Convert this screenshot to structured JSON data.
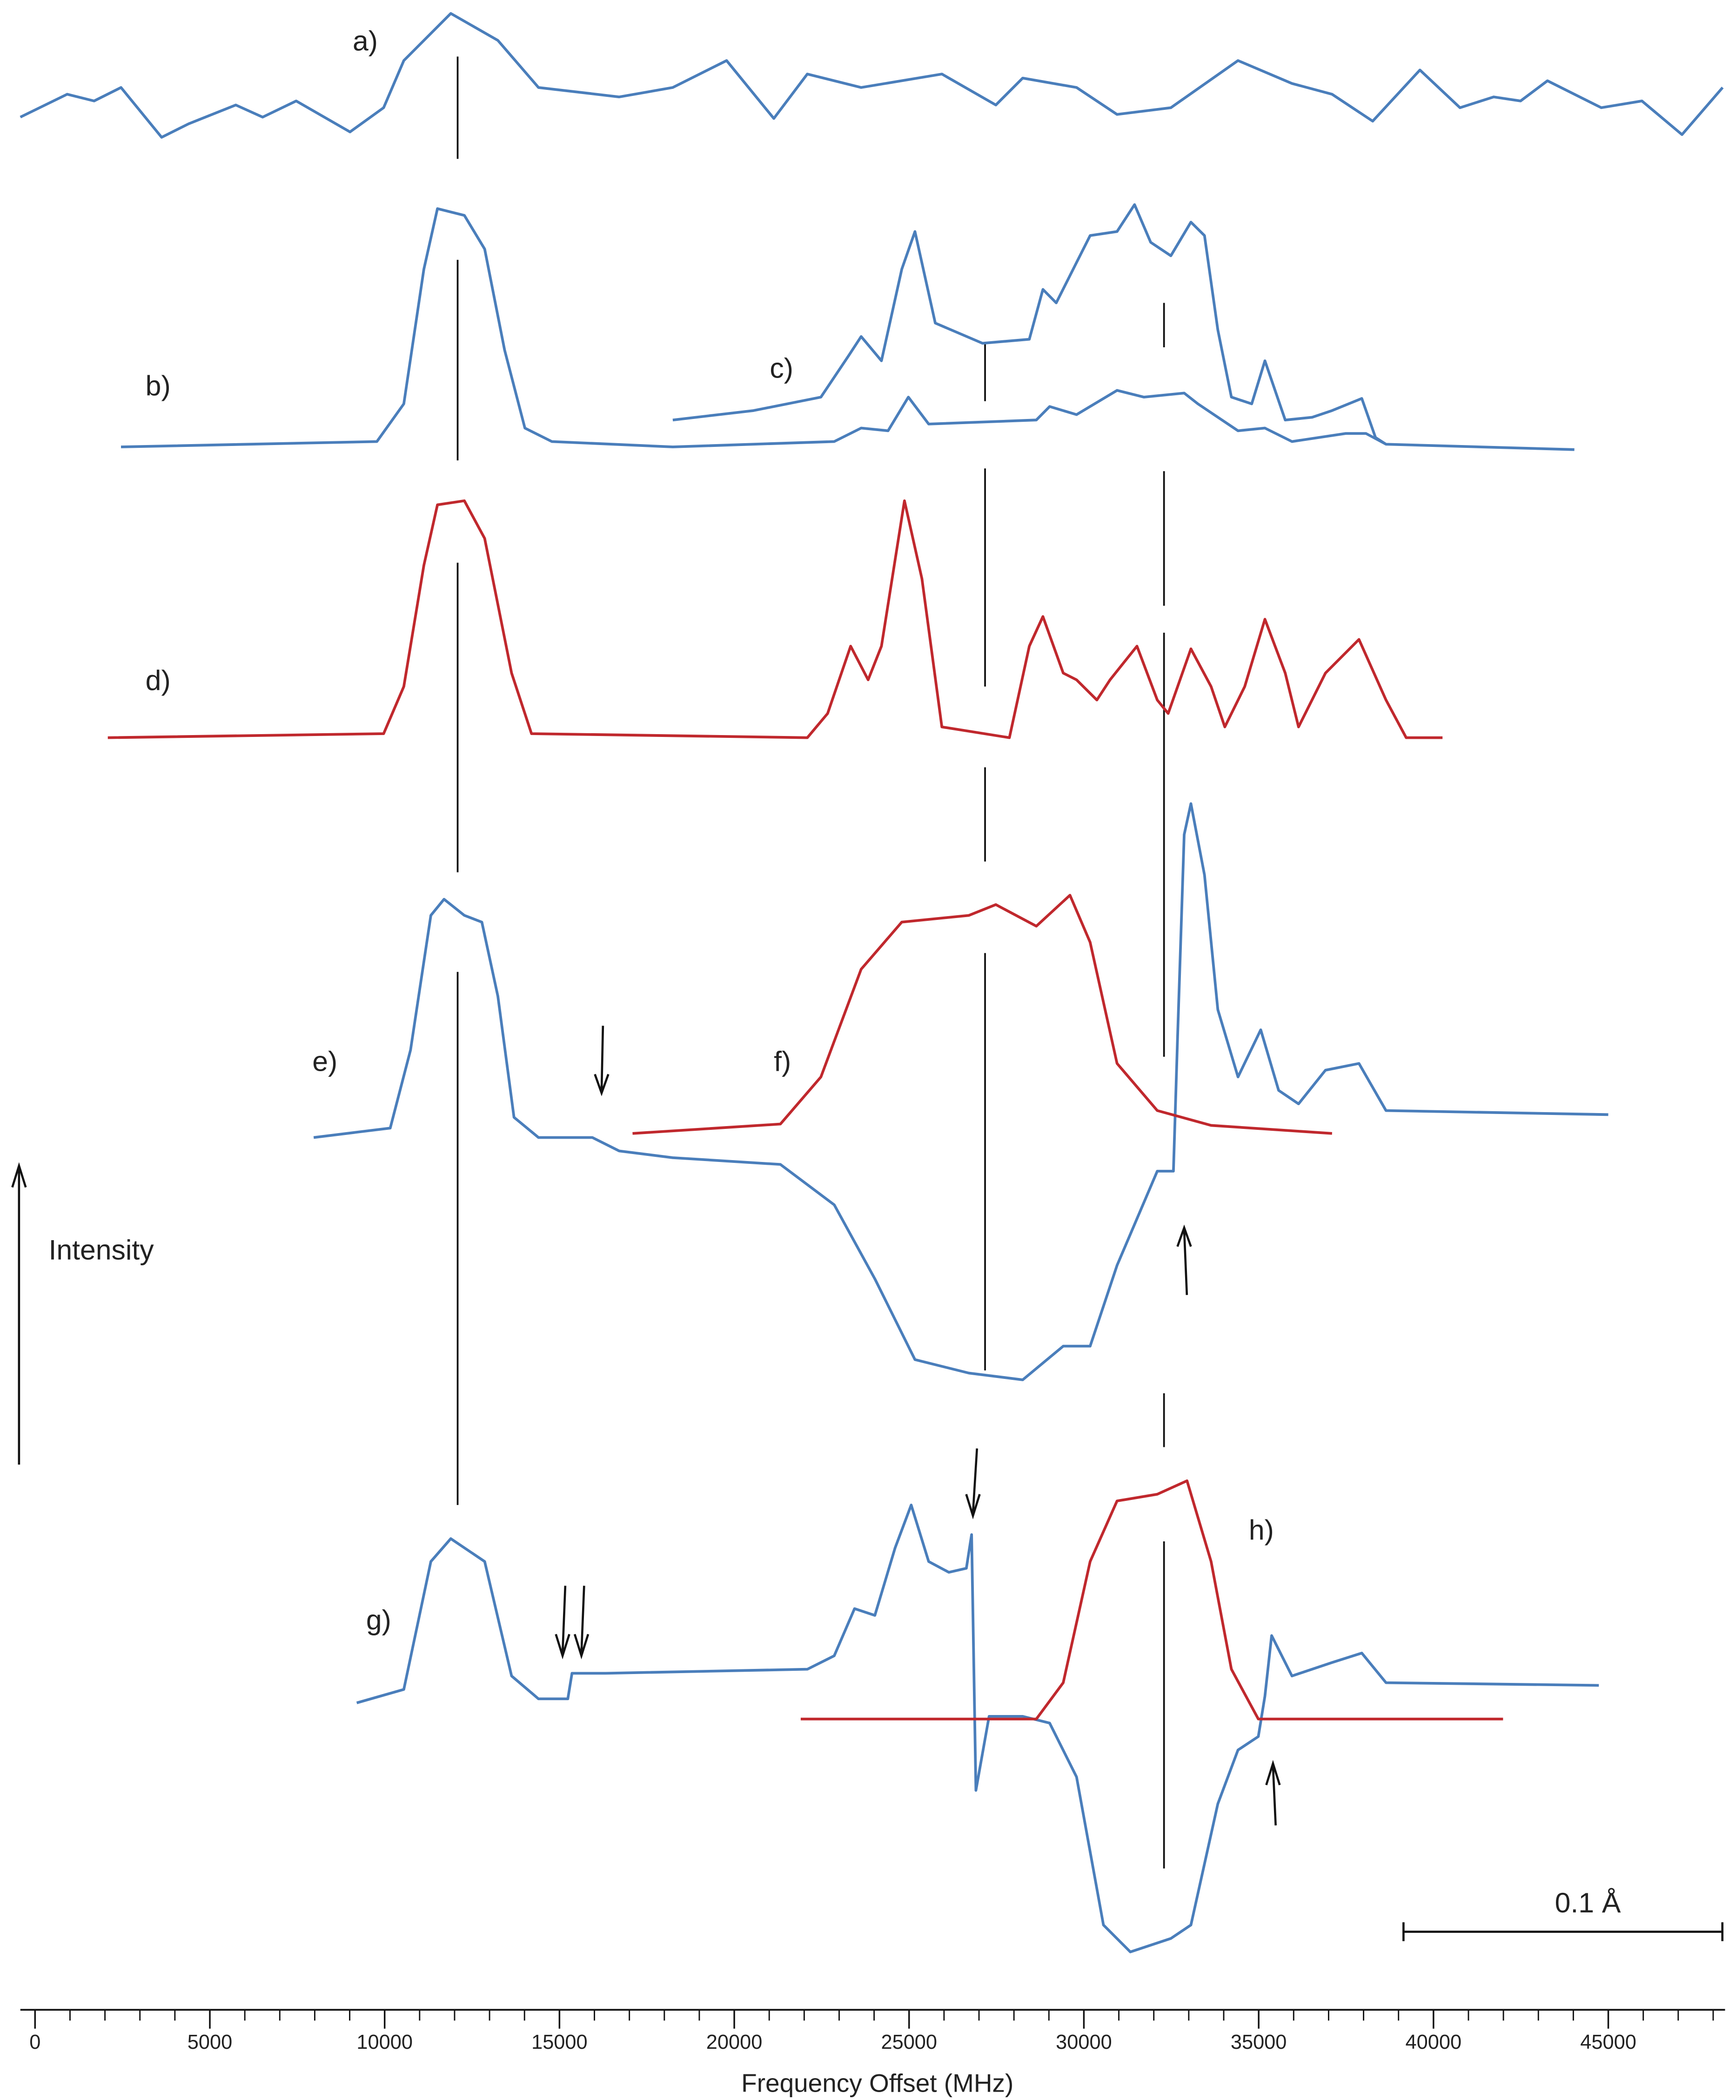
{
  "chart_data": {
    "type": "line",
    "xlabel": "Frequency Offset (MHz)",
    "ylabel": "Intensity",
    "annotation": "0.1  Å",
    "xlim": [
      -420,
      48340
    ],
    "xticks": [
      0,
      5000,
      10000,
      15000,
      20000,
      25000,
      30000,
      35000,
      40000,
      45000
    ],
    "xminor_ticks": [
      1000,
      2000,
      3000,
      4000,
      6000,
      7000,
      8000,
      9000,
      11000,
      12000,
      13000,
      14000,
      16000,
      17000,
      18000,
      19000,
      21000,
      22000,
      23000,
      24000,
      26000,
      27000,
      28000,
      29000,
      31000,
      32000,
      33000,
      34000,
      36000,
      37000,
      38000,
      39000,
      41000,
      42000,
      43000,
      44000,
      46000,
      47000,
      48000
    ],
    "series": [
      {
        "name": "a)",
        "color": "#4a7ebb",
        "x": [
          -420,
          920,
          1690,
          2460,
          3620,
          4390,
          5740,
          6510,
          7470,
          9010,
          9970,
          10550,
          11890,
          13240,
          14400,
          16710,
          18240,
          19780,
          21130,
          22090,
          23630,
          25940,
          27480,
          28250,
          29790,
          30950,
          32490,
          34410,
          35950,
          37100,
          38260,
          39610,
          40760,
          41720,
          42490,
          43260,
          44800,
          45960,
          47110,
          48270
        ],
        "values": [
          0.15,
          0.32,
          0.27,
          0.37,
          0.0,
          0.1,
          0.24,
          0.15,
          0.27,
          0.04,
          0.22,
          0.57,
          0.92,
          0.72,
          0.37,
          0.3,
          0.37,
          0.57,
          0.14,
          0.47,
          0.37,
          0.47,
          0.24,
          0.44,
          0.37,
          0.17,
          0.22,
          0.57,
          0.4,
          0.32,
          0.12,
          0.5,
          0.22,
          0.3,
          0.27,
          0.42,
          0.22,
          0.27,
          0.02,
          0.37
        ]
      },
      {
        "name": "b)",
        "color": "#4a7ebb",
        "x": [
          2460,
          9780,
          10550,
          11120,
          11510,
          12280,
          12860,
          13430,
          14010,
          14780,
          18240,
          22860,
          23630,
          24400,
          24980,
          25560,
          28640,
          29020,
          29790,
          30950,
          31720,
          32870,
          33260,
          34410,
          35180,
          35950,
          37490,
          38070,
          38640,
          44030
        ],
        "values": [
          0,
          0.04,
          0.32,
          1.32,
          1.77,
          1.72,
          1.47,
          0.72,
          0.14,
          0.04,
          0,
          0.04,
          0.14,
          0.12,
          0.37,
          0.17,
          0.2,
          0.3,
          0.24,
          0.42,
          0.37,
          0.4,
          0.32,
          0.12,
          0.14,
          0.04,
          0.1,
          0.1,
          0.02,
          -0.02
        ]
      },
      {
        "name": "c)",
        "color": "#4a7ebb",
        "x": [
          18240,
          20550,
          22480,
          23250,
          23630,
          24210,
          24790,
          25170,
          25750,
          27100,
          28440,
          28830,
          29210,
          29790,
          30180,
          30950,
          31450,
          31910,
          32490,
          33060,
          33450,
          33830,
          34220,
          34800,
          35180,
          35760,
          36530,
          37100,
          37950,
          38340,
          38640
        ],
        "values": [
          0.2,
          0.27,
          0.37,
          0.67,
          0.82,
          0.64,
          1.32,
          1.6,
          0.92,
          0.77,
          0.8,
          1.17,
          1.07,
          1.37,
          1.57,
          1.6,
          1.8,
          1.52,
          1.42,
          1.67,
          1.57,
          0.87,
          0.37,
          0.32,
          0.64,
          0.2,
          0.22,
          0.27,
          0.36,
          0.07,
          0.02
        ]
      },
      {
        "name": "d)",
        "color": "#c0282d",
        "x": [
          2080,
          9970,
          10550,
          11120,
          11510,
          12280,
          12860,
          13630,
          14200,
          22090,
          22670,
          23330,
          23830,
          24210,
          24870,
          25370,
          25940,
          27870,
          28440,
          28830,
          29410,
          29790,
          30370,
          30750,
          31520,
          32100,
          32410,
          33060,
          33640,
          34030,
          34600,
          35180,
          35760,
          36140,
          36910,
          37870,
          38640,
          39220,
          40260
        ],
        "values": [
          0,
          0.03,
          0.38,
          1.28,
          1.73,
          1.76,
          1.48,
          0.48,
          0.03,
          0,
          0.18,
          0.68,
          0.43,
          0.68,
          1.76,
          1.18,
          0.08,
          0,
          0.68,
          0.9,
          0.48,
          0.43,
          0.28,
          0.43,
          0.68,
          0.28,
          0.18,
          0.66,
          0.38,
          0.08,
          0.38,
          0.88,
          0.48,
          0.08,
          0.48,
          0.73,
          0.28,
          0,
          0
        ]
      },
      {
        "name": "e)",
        "color": "#4a7ebb",
        "x": [
          7970,
          10160,
          10740,
          11320,
          11700,
          12280,
          12780,
          13240,
          13700,
          14400,
          15940,
          16710,
          18240,
          21320,
          22860,
          24020,
          25170,
          26710,
          28250,
          29410,
          30180,
          30950,
          32100,
          32560,
          32680,
          32870,
          33060,
          33450,
          33830,
          34410,
          35060,
          35570,
          36140,
          36910,
          37870,
          38640,
          45000
        ],
        "values": [
          0,
          0.07,
          0.65,
          1.65,
          1.77,
          1.65,
          1.6,
          1.05,
          0.15,
          0,
          0,
          -0.1,
          -0.15,
          -0.2,
          -0.5,
          -1.05,
          -1.65,
          -1.75,
          -1.8,
          -1.55,
          -1.55,
          -0.95,
          -0.25,
          -0.25,
          0.75,
          2.25,
          2.48,
          1.95,
          0.95,
          0.45,
          0.8,
          0.35,
          0.25,
          0.5,
          0.55,
          0.2,
          0.17
        ]
      },
      {
        "name": "f)",
        "color": "#c0282d",
        "x": [
          17090,
          21320,
          22480,
          23630,
          24790,
          26710,
          27480,
          28640,
          29600,
          30180,
          30950,
          32100,
          33640,
          37100
        ],
        "values": [
          0,
          0.07,
          0.42,
          1.22,
          1.57,
          1.62,
          1.7,
          1.54,
          1.77,
          1.42,
          0.52,
          0.17,
          0.06,
          0
        ]
      },
      {
        "name": "g)",
        "color": "#4a7ebb",
        "x": [
          9200,
          10550,
          11320,
          11890,
          12860,
          13630,
          14400,
          15240,
          15360,
          16320,
          22090,
          22860,
          23440,
          24020,
          24600,
          25060,
          25560,
          26140,
          26640,
          26790,
          26910,
          27290,
          28250,
          29020,
          29790,
          30560,
          31330,
          32490,
          33060,
          33830,
          34410,
          34990,
          35180,
          35370,
          35950,
          37100,
          37950,
          38640,
          44730
        ],
        "values": [
          0,
          0.1,
          1.05,
          1.22,
          1.05,
          0.2,
          0.03,
          0.03,
          0.22,
          0.22,
          0.25,
          0.35,
          0.7,
          0.65,
          1.15,
          1.47,
          1.05,
          0.97,
          1.0,
          1.25,
          -0.65,
          -0.1,
          -0.1,
          -0.15,
          -0.55,
          -1.65,
          -1.85,
          -1.75,
          -1.65,
          -0.75,
          -0.35,
          -0.25,
          0.05,
          0.5,
          0.2,
          0.3,
          0.37,
          0.15,
          0.13
        ]
      },
      {
        "name": "h)",
        "color": "#c0282d",
        "x": [
          21900,
          28640,
          29410,
          30180,
          30950,
          32100,
          32950,
          33640,
          34220,
          34990,
          41990
        ],
        "values": [
          0,
          0,
          0.27,
          1.17,
          1.62,
          1.67,
          1.77,
          1.17,
          0.37,
          0,
          0
        ]
      }
    ]
  }
}
